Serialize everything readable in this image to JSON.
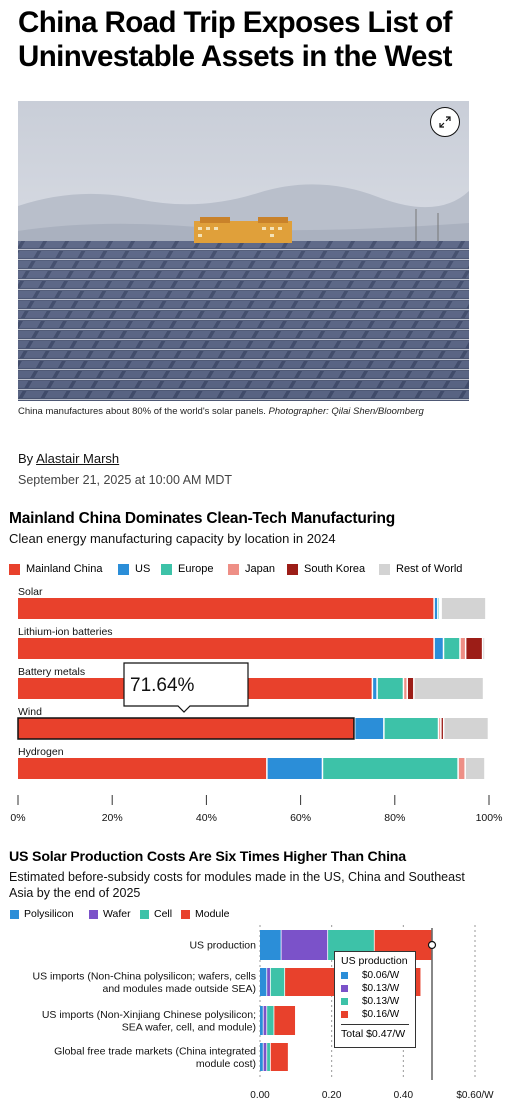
{
  "article": {
    "headline": "China Road Trip Exposes List of Uninvestable Assets in the West",
    "caption_text": "China manufactures about 80% of the world's solar panels. ",
    "caption_credit": "Photographer: Qilai Shen/Bloomberg",
    "byline_prefix": "By ",
    "author": "Alastair Marsh",
    "date": "September 21, 2025 at 10:00 AM MDT"
  },
  "chart_data": [
    {
      "type": "bar",
      "orientation": "horizontal",
      "stacked": true,
      "title": "Mainland China Dominates Clean-Tech Manufacturing",
      "subtitle": "Clean energy manufacturing capacity by location in 2024",
      "categories": [
        "Solar",
        "Lithium-ion batteries",
        "Battery metals",
        "Wind",
        "Hydrogen"
      ],
      "series": [
        {
          "name": "Mainland China",
          "color": "#e8412c",
          "values": [
            88.5,
            88.5,
            75.4,
            71.64,
            53.0
          ]
        },
        {
          "name": "US",
          "color": "#2b8ed8",
          "values": [
            0.8,
            2.0,
            1.0,
            6.2,
            11.8
          ]
        },
        {
          "name": "Europe",
          "color": "#3dc2a8",
          "values": [
            0.4,
            3.5,
            5.6,
            11.6,
            28.8
          ]
        },
        {
          "name": "Japan",
          "color": "#ee8f86",
          "values": [
            0.3,
            1.2,
            0.8,
            0.5,
            1.5
          ]
        },
        {
          "name": "South Korea",
          "color": "#9c1d17",
          "values": [
            0,
            3.6,
            1.4,
            0.6,
            0
          ]
        },
        {
          "name": "Rest of World",
          "color": "#d3d3d3",
          "values": [
            9.5,
            0.5,
            14.8,
            9.5,
            4.2
          ]
        }
      ],
      "xlim": [
        0,
        100
      ],
      "ticks": [
        "0%",
        "20%",
        "40%",
        "60%",
        "80%",
        "100%"
      ],
      "highlight": {
        "category": "Wind",
        "label": "71.64%"
      }
    },
    {
      "type": "bar",
      "orientation": "horizontal",
      "stacked": true,
      "title": "US Solar Production Costs Are Six Times Higher Than China",
      "subtitle": "Estimated before-subsidy costs for modules made in the US, China and Southeast Asia by the end of 2025",
      "categories": [
        [
          "US production"
        ],
        [
          "US imports (Non-China polysilicon; wafers, cells",
          "and modules made outside SEA)"
        ],
        [
          "US imports (Non-Xinjiang Chinese polysilicon;",
          "SEA wafer, cell, and module)"
        ],
        [
          "Global free trade markets (China integrated",
          "module cost)"
        ]
      ],
      "series": [
        {
          "name": "Polysilicon",
          "color": "#2b8ed8",
          "values": [
            0.06,
            0.02,
            0.01,
            0.01
          ]
        },
        {
          "name": "Wafer",
          "color": "#7b52c9",
          "values": [
            0.13,
            0.01,
            0.01,
            0.01
          ]
        },
        {
          "name": "Cell",
          "color": "#3dc2a8",
          "values": [
            0.13,
            0.04,
            0.02,
            0.01
          ]
        },
        {
          "name": "Module",
          "color": "#e8412c",
          "values": [
            0.16,
            0.38,
            0.06,
            0.05
          ]
        }
      ],
      "xlim": [
        0,
        0.6
      ],
      "ticks": [
        "0.00",
        "0.20",
        "0.40",
        "$0.60/W"
      ],
      "tooltip": {
        "title": "US production",
        "rows": [
          "$0.06/W",
          "$0.13/W",
          "$0.13/W",
          "$0.16/W"
        ],
        "total": "Total $0.47/W"
      }
    }
  ]
}
